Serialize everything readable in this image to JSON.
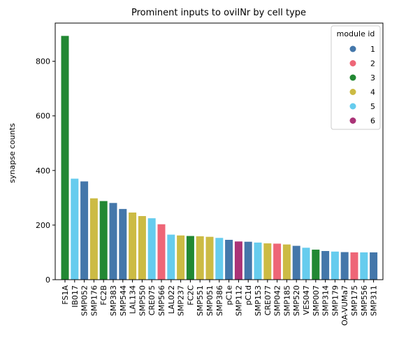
{
  "chart_data": {
    "type": "bar",
    "title": "Prominent inputs to oviINr by cell type",
    "xlabel": "",
    "ylabel": "synapse counts",
    "ylim": [
      0,
      940
    ],
    "yticks": [
      0,
      200,
      400,
      600,
      800
    ],
    "grid": false,
    "legend": {
      "title": "module id",
      "placement": "top-right",
      "entries": [
        {
          "label": "1",
          "color": "#4477aa"
        },
        {
          "label": "2",
          "color": "#ee6677"
        },
        {
          "label": "3",
          "color": "#228833"
        },
        {
          "label": "4",
          "color": "#ccbb44"
        },
        {
          "label": "5",
          "color": "#66ccee"
        },
        {
          "label": "6",
          "color": "#aa3377"
        }
      ]
    },
    "categories": [
      "FS1A",
      "IB017",
      "SMP052",
      "SMP176",
      "FC2B",
      "SMP383",
      "SMP544",
      "LAL134",
      "SMP550",
      "CRE075",
      "SMP566",
      "LAL022",
      "SMP237",
      "FC2C",
      "SMP551",
      "SMP051",
      "SMP386",
      "pC1e",
      "SMP112",
      "pC1d",
      "SMP153",
      "CRE077",
      "SMP042",
      "SMP185",
      "SMP520",
      "VES047",
      "SMP007",
      "SMP314",
      "SMP179",
      "OA-VUMa7",
      "SMP175",
      "SMP556",
      "SMP311"
    ],
    "values": [
      893,
      370,
      360,
      298,
      288,
      281,
      259,
      246,
      233,
      225,
      203,
      165,
      162,
      160,
      159,
      157,
      153,
      146,
      140,
      139,
      136,
      133,
      132,
      129,
      124,
      117,
      110,
      105,
      103,
      101,
      100,
      100,
      100
    ],
    "module": [
      "3",
      "5",
      "1",
      "4",
      "3",
      "1",
      "1",
      "4",
      "4",
      "5",
      "2",
      "5",
      "4",
      "3",
      "4",
      "4",
      "5",
      "1",
      "6",
      "1",
      "5",
      "4",
      "2",
      "4",
      "1",
      "5",
      "3",
      "1",
      "5",
      "1",
      "2",
      "5",
      "1"
    ]
  }
}
